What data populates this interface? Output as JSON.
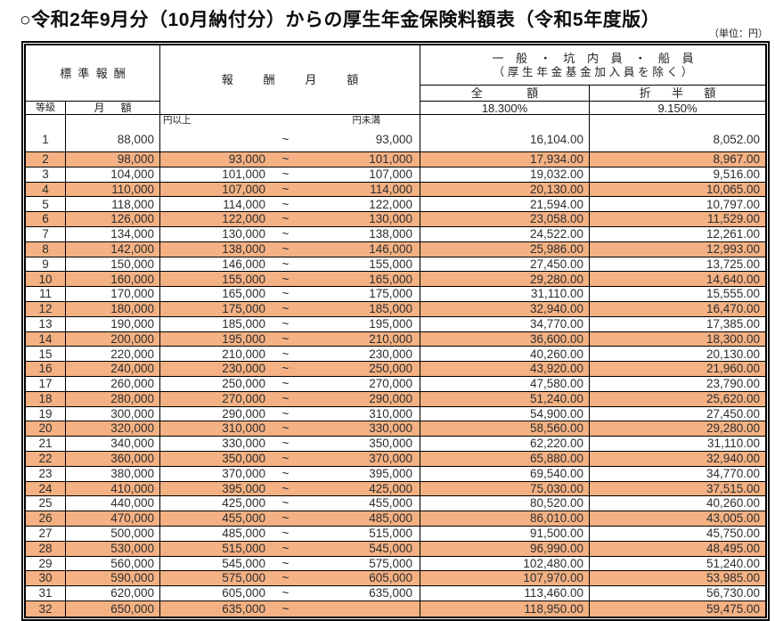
{
  "page": {
    "title": "○令和2年9月分（10月納付分）からの厚生年金保険料額表（令和5年度版）",
    "unit_note": "（単位：円）"
  },
  "table": {
    "header": {
      "standard_remuneration": "標準報酬",
      "grade": "等級",
      "monthly_amount": "月額",
      "remuneration_monthly": "報酬月額",
      "category_line1": "一般・坑内員・船員",
      "category_line2": "（厚生年金基金加入員を除く）",
      "full_amount": "全額",
      "half_amount": "折半額",
      "full_rate": "18.300%",
      "half_rate": "9.150%",
      "yen_or_more": "円以上",
      "yen_less_than": "円未満"
    },
    "range_separator": "~",
    "rows": [
      {
        "grade": "1",
        "monthly": "88,000",
        "lower": "",
        "upper": "93,000",
        "full": "16,104.00",
        "half": "8,052.00"
      },
      {
        "grade": "2",
        "monthly": "98,000",
        "lower": "93,000",
        "upper": "101,000",
        "full": "17,934.00",
        "half": "8,967.00"
      },
      {
        "grade": "3",
        "monthly": "104,000",
        "lower": "101,000",
        "upper": "107,000",
        "full": "19,032.00",
        "half": "9,516.00"
      },
      {
        "grade": "4",
        "monthly": "110,000",
        "lower": "107,000",
        "upper": "114,000",
        "full": "20,130.00",
        "half": "10,065.00"
      },
      {
        "grade": "5",
        "monthly": "118,000",
        "lower": "114,000",
        "upper": "122,000",
        "full": "21,594.00",
        "half": "10,797.00"
      },
      {
        "grade": "6",
        "monthly": "126,000",
        "lower": "122,000",
        "upper": "130,000",
        "full": "23,058.00",
        "half": "11,529.00"
      },
      {
        "grade": "7",
        "monthly": "134,000",
        "lower": "130,000",
        "upper": "138,000",
        "full": "24,522.00",
        "half": "12,261.00"
      },
      {
        "grade": "8",
        "monthly": "142,000",
        "lower": "138,000",
        "upper": "146,000",
        "full": "25,986.00",
        "half": "12,993.00"
      },
      {
        "grade": "9",
        "monthly": "150,000",
        "lower": "146,000",
        "upper": "155,000",
        "full": "27,450.00",
        "half": "13,725.00"
      },
      {
        "grade": "10",
        "monthly": "160,000",
        "lower": "155,000",
        "upper": "165,000",
        "full": "29,280.00",
        "half": "14,640.00"
      },
      {
        "grade": "11",
        "monthly": "170,000",
        "lower": "165,000",
        "upper": "175,000",
        "full": "31,110.00",
        "half": "15,555.00"
      },
      {
        "grade": "12",
        "monthly": "180,000",
        "lower": "175,000",
        "upper": "185,000",
        "full": "32,940.00",
        "half": "16,470.00"
      },
      {
        "grade": "13",
        "monthly": "190,000",
        "lower": "185,000",
        "upper": "195,000",
        "full": "34,770.00",
        "half": "17,385.00"
      },
      {
        "grade": "14",
        "monthly": "200,000",
        "lower": "195,000",
        "upper": "210,000",
        "full": "36,600.00",
        "half": "18,300.00"
      },
      {
        "grade": "15",
        "monthly": "220,000",
        "lower": "210,000",
        "upper": "230,000",
        "full": "40,260.00",
        "half": "20,130.00"
      },
      {
        "grade": "16",
        "monthly": "240,000",
        "lower": "230,000",
        "upper": "250,000",
        "full": "43,920.00",
        "half": "21,960.00"
      },
      {
        "grade": "17",
        "monthly": "260,000",
        "lower": "250,000",
        "upper": "270,000",
        "full": "47,580.00",
        "half": "23,790.00"
      },
      {
        "grade": "18",
        "monthly": "280,000",
        "lower": "270,000",
        "upper": "290,000",
        "full": "51,240.00",
        "half": "25,620.00"
      },
      {
        "grade": "19",
        "monthly": "300,000",
        "lower": "290,000",
        "upper": "310,000",
        "full": "54,900.00",
        "half": "27,450.00"
      },
      {
        "grade": "20",
        "monthly": "320,000",
        "lower": "310,000",
        "upper": "330,000",
        "full": "58,560.00",
        "half": "29,280.00"
      },
      {
        "grade": "21",
        "monthly": "340,000",
        "lower": "330,000",
        "upper": "350,000",
        "full": "62,220.00",
        "half": "31,110.00"
      },
      {
        "grade": "22",
        "monthly": "360,000",
        "lower": "350,000",
        "upper": "370,000",
        "full": "65,880.00",
        "half": "32,940.00"
      },
      {
        "grade": "23",
        "monthly": "380,000",
        "lower": "370,000",
        "upper": "395,000",
        "full": "69,540.00",
        "half": "34,770.00"
      },
      {
        "grade": "24",
        "monthly": "410,000",
        "lower": "395,000",
        "upper": "425,000",
        "full": "75,030.00",
        "half": "37,515.00"
      },
      {
        "grade": "25",
        "monthly": "440,000",
        "lower": "425,000",
        "upper": "455,000",
        "full": "80,520.00",
        "half": "40,260.00"
      },
      {
        "grade": "26",
        "monthly": "470,000",
        "lower": "455,000",
        "upper": "485,000",
        "full": "86,010.00",
        "half": "43,005.00"
      },
      {
        "grade": "27",
        "monthly": "500,000",
        "lower": "485,000",
        "upper": "515,000",
        "full": "91,500.00",
        "half": "45,750.00"
      },
      {
        "grade": "28",
        "monthly": "530,000",
        "lower": "515,000",
        "upper": "545,000",
        "full": "96,990.00",
        "half": "48,495.00"
      },
      {
        "grade": "29",
        "monthly": "560,000",
        "lower": "545,000",
        "upper": "575,000",
        "full": "102,480.00",
        "half": "51,240.00"
      },
      {
        "grade": "30",
        "monthly": "590,000",
        "lower": "575,000",
        "upper": "605,000",
        "full": "107,970.00",
        "half": "53,985.00"
      },
      {
        "grade": "31",
        "monthly": "620,000",
        "lower": "605,000",
        "upper": "635,000",
        "full": "113,460.00",
        "half": "56,730.00"
      },
      {
        "grade": "32",
        "monthly": "650,000",
        "lower": "635,000",
        "upper": "",
        "full": "118,950.00",
        "half": "59,475.00"
      }
    ]
  },
  "colors": {
    "stripe": "#F4B183",
    "border": "#000000",
    "title_text": "#0D0D0D"
  }
}
